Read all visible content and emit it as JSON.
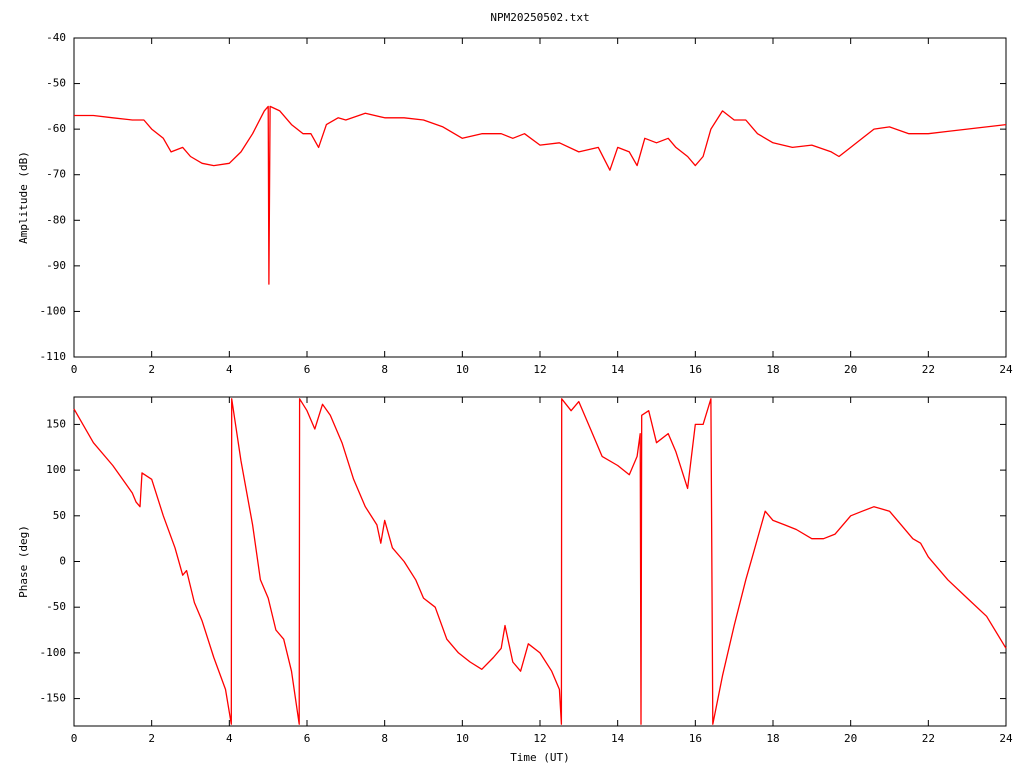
{
  "chart_data": [
    {
      "type": "line",
      "title": "NPM20250502.txt",
      "ylabel": "Amplitude (dB)",
      "color": "#ff0000",
      "xlim": [
        0,
        24
      ],
      "xticks": [
        0,
        2,
        4,
        6,
        8,
        10,
        12,
        14,
        16,
        18,
        20,
        22,
        24
      ],
      "ylim": [
        -110,
        -40
      ],
      "yticks": [
        -110,
        -100,
        -90,
        -80,
        -70,
        -60,
        -50,
        -40
      ],
      "x": [
        0,
        0.5,
        1.0,
        1.5,
        1.8,
        2.0,
        2.3,
        2.5,
        2.8,
        3.0,
        3.3,
        3.6,
        4.0,
        4.3,
        4.6,
        4.9,
        5.0,
        5.02,
        5.05,
        5.3,
        5.6,
        5.9,
        6.1,
        6.3,
        6.5,
        6.8,
        7.0,
        7.5,
        8.0,
        8.5,
        9.0,
        9.5,
        10.0,
        10.5,
        11.0,
        11.3,
        11.6,
        12.0,
        12.5,
        13.0,
        13.5,
        13.8,
        14.0,
        14.3,
        14.5,
        14.7,
        15.0,
        15.3,
        15.5,
        15.8,
        16.0,
        16.2,
        16.4,
        16.7,
        17.0,
        17.3,
        17.6,
        18.0,
        18.5,
        19.0,
        19.5,
        19.7,
        20.0,
        20.3,
        20.6,
        21.0,
        21.5,
        22.0,
        22.5,
        23.0,
        23.5,
        24.0
      ],
      "values": [
        -57,
        -57,
        -57.5,
        -58,
        -58,
        -60,
        -62,
        -65,
        -64,
        -66,
        -67.5,
        -68,
        -67.5,
        -65,
        -61,
        -56,
        -55,
        -94,
        -55,
        -56,
        -59,
        -61,
        -61,
        -64,
        -59,
        -57.5,
        -58,
        -56.5,
        -57.5,
        -57.5,
        -58,
        -59.5,
        -62,
        -61,
        -61,
        -62,
        -61,
        -63.5,
        -63,
        -65,
        -64,
        -69,
        -64,
        -65,
        -68,
        -62,
        -63,
        -62,
        -64,
        -66,
        -68,
        -66,
        -60,
        -56,
        -58,
        -58,
        -61,
        -63,
        -64,
        -63.5,
        -65,
        -66,
        -64,
        -62,
        -60,
        -59.5,
        -61,
        -61,
        -60.5,
        -60,
        -59.5,
        -59
      ]
    },
    {
      "type": "line",
      "ylabel": "Phase (deg)",
      "xlabel": "Time (UT)",
      "color": "#ff0000",
      "xlim": [
        0,
        24
      ],
      "xticks": [
        0,
        2,
        4,
        6,
        8,
        10,
        12,
        14,
        16,
        18,
        20,
        22,
        24
      ],
      "ylim": [
        -180,
        180
      ],
      "yticks": [
        -150,
        -100,
        -50,
        0,
        50,
        100,
        150
      ],
      "x": [
        0,
        0.5,
        1.0,
        1.5,
        1.6,
        1.7,
        1.75,
        2.0,
        2.3,
        2.6,
        2.8,
        2.9,
        3.1,
        3.3,
        3.6,
        3.9,
        4.05,
        4.06,
        4.3,
        4.6,
        4.8,
        5.0,
        5.2,
        5.4,
        5.6,
        5.8,
        5.81,
        6.0,
        6.2,
        6.4,
        6.6,
        6.9,
        7.2,
        7.5,
        7.8,
        7.9,
        8.0,
        8.2,
        8.5,
        8.8,
        9.0,
        9.3,
        9.6,
        9.9,
        10.2,
        10.5,
        10.8,
        11.0,
        11.1,
        11.3,
        11.5,
        11.7,
        12.0,
        12.3,
        12.5,
        12.55,
        12.56,
        12.8,
        13.0,
        13.3,
        13.6,
        14.0,
        14.3,
        14.5,
        14.58,
        14.6,
        14.62,
        14.8,
        15.0,
        15.3,
        15.5,
        15.8,
        16.0,
        16.2,
        16.4,
        16.45,
        16.7,
        17.0,
        17.3,
        17.5,
        17.8,
        18.0,
        18.3,
        18.6,
        19.0,
        19.3,
        19.6,
        20.0,
        20.3,
        20.6,
        21.0,
        21.3,
        21.6,
        21.8,
        22.0,
        22.5,
        23.0,
        23.5,
        24.0
      ],
      "values": [
        167,
        130,
        105,
        75,
        65,
        60,
        97,
        90,
        50,
        15,
        -15,
        -10,
        -45,
        -65,
        -105,
        -140,
        -178,
        178,
        110,
        40,
        -20,
        -40,
        -75,
        -85,
        -120,
        -178,
        178,
        165,
        145,
        172,
        160,
        130,
        90,
        60,
        40,
        20,
        45,
        15,
        0,
        -20,
        -40,
        -50,
        -85,
        -100,
        -110,
        -118,
        -105,
        -95,
        -70,
        -110,
        -120,
        -90,
        -100,
        -120,
        -140,
        -178,
        178,
        165,
        175,
        145,
        115,
        105,
        95,
        115,
        140,
        -178,
        160,
        165,
        130,
        140,
        120,
        80,
        150,
        150,
        178,
        -178,
        -125,
        -70,
        -20,
        10,
        55,
        45,
        40,
        35,
        25,
        25,
        30,
        50,
        55,
        60,
        55,
        40,
        25,
        20,
        5,
        -20,
        -40,
        -60,
        -95
      ]
    }
  ]
}
